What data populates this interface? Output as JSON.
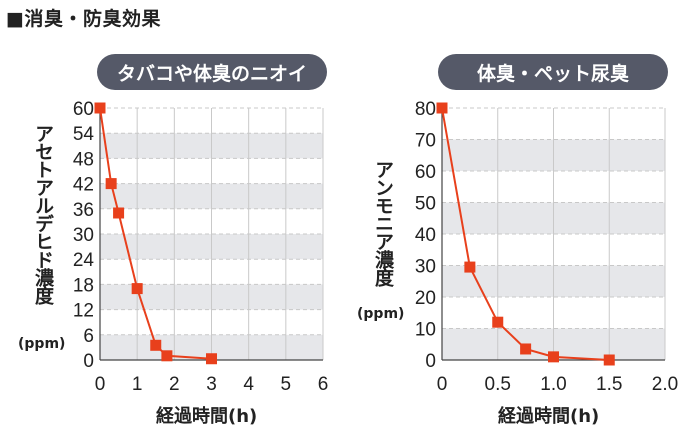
{
  "page_title": "■消臭・防臭効果",
  "charts_meta": [
    {
      "pill": "タバコや体臭のニオイ",
      "ylabel": "アセトアルデヒド濃度",
      "unit": "(ppm)",
      "xlabel": "経過時間(h)"
    },
    {
      "pill": "体臭・ペット尿臭",
      "ylabel": "アンモニア濃度",
      "unit": "(ppm)",
      "xlabel": "経過時間(h)"
    }
  ],
  "chart_data": [
    {
      "type": "line",
      "title": "タバコや体臭のニオイ",
      "xlabel": "経過時間(h)",
      "ylabel": "アセトアルデヒド濃度 (ppm)",
      "x": [
        0,
        0.3,
        0.5,
        1.0,
        1.5,
        1.8,
        3.0
      ],
      "values": [
        60,
        42,
        35,
        17,
        3.5,
        1,
        0.3
      ],
      "xlim": [
        0,
        6
      ],
      "ylim": [
        0,
        60
      ],
      "xticks": [
        "0",
        "1",
        "2",
        "3",
        "4",
        "5",
        "6"
      ],
      "yticks": [
        "0",
        "6",
        "12",
        "18",
        "24",
        "30",
        "36",
        "42",
        "48",
        "54",
        "60"
      ],
      "grid": true,
      "color": "#e8401c"
    },
    {
      "type": "line",
      "title": "体臭・ペット尿臭",
      "xlabel": "経過時間(h)",
      "ylabel": "アンモニア濃度 (ppm)",
      "x": [
        0,
        0.25,
        0.5,
        0.75,
        1.0,
        1.5
      ],
      "values": [
        80,
        29.5,
        12,
        3.5,
        1,
        0
      ],
      "xlim": [
        0,
        2.0
      ],
      "ylim": [
        0,
        80
      ],
      "xticks": [
        "0",
        "0.5",
        "1.0",
        "1.5",
        "2.0"
      ],
      "yticks": [
        "0",
        "10",
        "20",
        "30",
        "40",
        "50",
        "60",
        "70",
        "80"
      ],
      "grid": true,
      "color": "#e8401c"
    }
  ]
}
